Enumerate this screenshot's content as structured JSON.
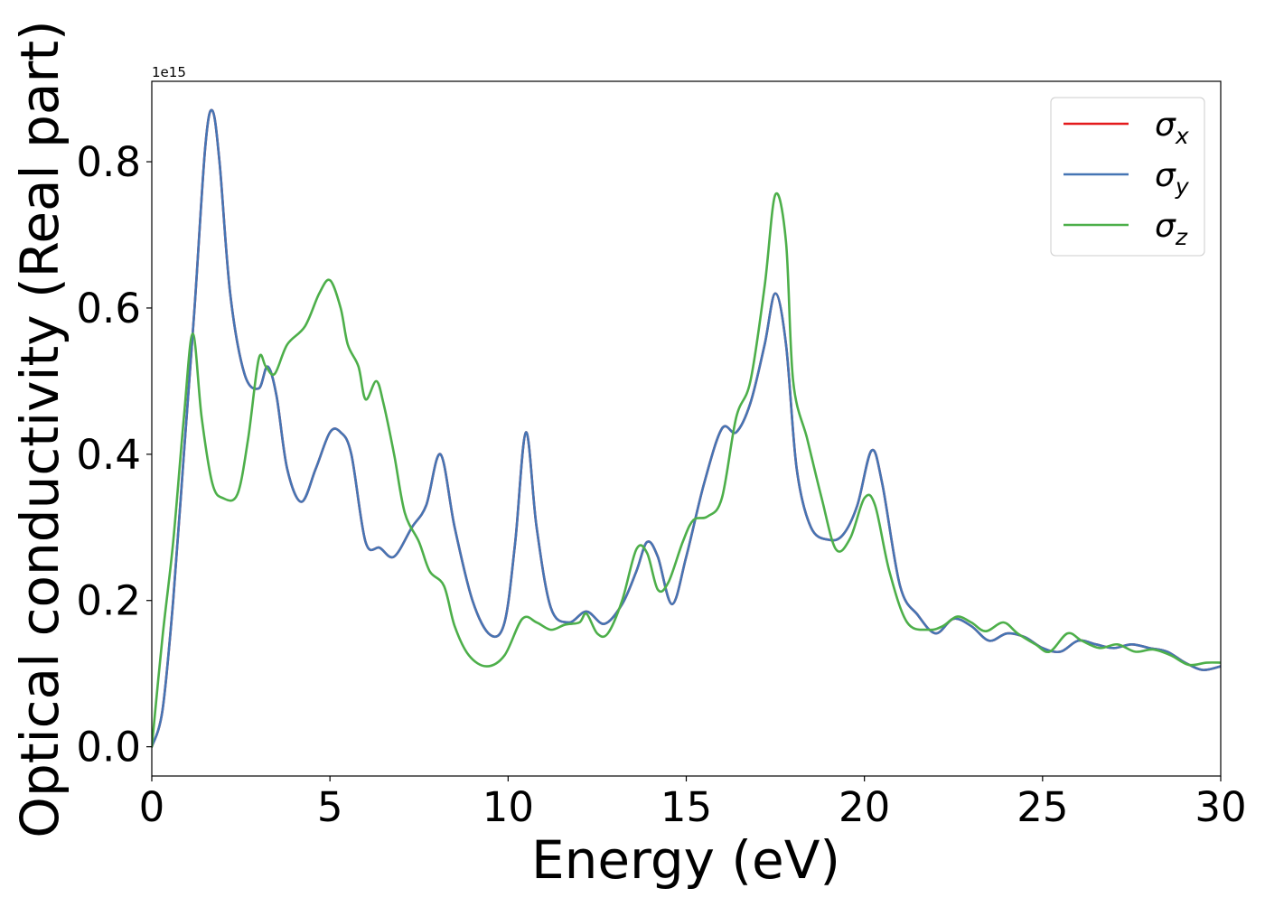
{
  "chart_data": {
    "type": "line",
    "title": "",
    "xlabel": "Energy (eV)",
    "ylabel": "Optical conductivity (Real part)",
    "offset_text": "1e15",
    "xlim": [
      0,
      30
    ],
    "ylim": [
      -0.04,
      0.91
    ],
    "y_multiplier": 1000000000000000.0,
    "xticks": [
      0,
      5,
      10,
      15,
      20,
      25,
      30
    ],
    "xtick_labels": [
      "0",
      "5",
      "10",
      "15",
      "20",
      "25",
      "30"
    ],
    "yticks": [
      0.0,
      0.2,
      0.4,
      0.6,
      0.8
    ],
    "ytick_labels": [
      "0.0",
      "0.2",
      "0.4",
      "0.6",
      "0.8"
    ],
    "grid": false,
    "legend_position": "top-right",
    "series": [
      {
        "name": "σx",
        "name_base": "σ",
        "name_sub": "x",
        "color": "#e41a1c",
        "points": [
          [
            0,
            0
          ],
          [
            0.3,
            0.05
          ],
          [
            0.6,
            0.2
          ],
          [
            0.9,
            0.4
          ],
          [
            1.2,
            0.6
          ],
          [
            1.5,
            0.82
          ],
          [
            1.7,
            0.87
          ],
          [
            1.9,
            0.8
          ],
          [
            2.2,
            0.62
          ],
          [
            2.6,
            0.51
          ],
          [
            3.0,
            0.49
          ],
          [
            3.25,
            0.52
          ],
          [
            3.5,
            0.48
          ],
          [
            3.8,
            0.38
          ],
          [
            4.2,
            0.335
          ],
          [
            4.6,
            0.38
          ],
          [
            5.0,
            0.43
          ],
          [
            5.3,
            0.43
          ],
          [
            5.6,
            0.4
          ],
          [
            6.0,
            0.28
          ],
          [
            6.4,
            0.272
          ],
          [
            6.8,
            0.26
          ],
          [
            7.3,
            0.3
          ],
          [
            7.7,
            0.33
          ],
          [
            8.1,
            0.4
          ],
          [
            8.5,
            0.3
          ],
          [
            9.0,
            0.2
          ],
          [
            9.5,
            0.153
          ],
          [
            9.9,
            0.17
          ],
          [
            10.2,
            0.28
          ],
          [
            10.5,
            0.43
          ],
          [
            10.8,
            0.3
          ],
          [
            11.2,
            0.19
          ],
          [
            11.7,
            0.17
          ],
          [
            12.2,
            0.185
          ],
          [
            12.7,
            0.168
          ],
          [
            13.2,
            0.195
          ],
          [
            13.6,
            0.24
          ],
          [
            13.9,
            0.28
          ],
          [
            14.2,
            0.26
          ],
          [
            14.6,
            0.195
          ],
          [
            15.0,
            0.26
          ],
          [
            15.5,
            0.36
          ],
          [
            16.0,
            0.435
          ],
          [
            16.4,
            0.43
          ],
          [
            16.8,
            0.47
          ],
          [
            17.2,
            0.55
          ],
          [
            17.5,
            0.62
          ],
          [
            17.8,
            0.55
          ],
          [
            18.1,
            0.38
          ],
          [
            18.5,
            0.3
          ],
          [
            19.0,
            0.283
          ],
          [
            19.4,
            0.29
          ],
          [
            19.8,
            0.33
          ],
          [
            20.2,
            0.405
          ],
          [
            20.5,
            0.36
          ],
          [
            21.0,
            0.22
          ],
          [
            21.5,
            0.18
          ],
          [
            22.0,
            0.155
          ],
          [
            22.5,
            0.175
          ],
          [
            23.0,
            0.165
          ],
          [
            23.5,
            0.145
          ],
          [
            24.0,
            0.155
          ],
          [
            24.5,
            0.15
          ],
          [
            25.0,
            0.135
          ],
          [
            25.5,
            0.13
          ],
          [
            26.0,
            0.145
          ],
          [
            26.5,
            0.14
          ],
          [
            27.0,
            0.135
          ],
          [
            27.5,
            0.14
          ],
          [
            28.0,
            0.135
          ],
          [
            28.5,
            0.13
          ],
          [
            29.0,
            0.115
          ],
          [
            29.5,
            0.105
          ],
          [
            30.0,
            0.11
          ]
        ]
      },
      {
        "name": "σy",
        "name_base": "σ",
        "name_sub": "y",
        "color": "#4575b4",
        "points": [
          [
            0,
            0
          ],
          [
            0.3,
            0.05
          ],
          [
            0.6,
            0.2
          ],
          [
            0.9,
            0.4
          ],
          [
            1.2,
            0.6
          ],
          [
            1.5,
            0.82
          ],
          [
            1.7,
            0.87
          ],
          [
            1.9,
            0.8
          ],
          [
            2.2,
            0.62
          ],
          [
            2.6,
            0.51
          ],
          [
            3.0,
            0.49
          ],
          [
            3.25,
            0.52
          ],
          [
            3.5,
            0.48
          ],
          [
            3.8,
            0.38
          ],
          [
            4.2,
            0.335
          ],
          [
            4.6,
            0.38
          ],
          [
            5.0,
            0.43
          ],
          [
            5.3,
            0.43
          ],
          [
            5.6,
            0.4
          ],
          [
            6.0,
            0.28
          ],
          [
            6.4,
            0.272
          ],
          [
            6.8,
            0.26
          ],
          [
            7.3,
            0.3
          ],
          [
            7.7,
            0.33
          ],
          [
            8.1,
            0.4
          ],
          [
            8.5,
            0.3
          ],
          [
            9.0,
            0.2
          ],
          [
            9.5,
            0.153
          ],
          [
            9.9,
            0.17
          ],
          [
            10.2,
            0.28
          ],
          [
            10.5,
            0.43
          ],
          [
            10.8,
            0.3
          ],
          [
            11.2,
            0.19
          ],
          [
            11.7,
            0.17
          ],
          [
            12.2,
            0.185
          ],
          [
            12.7,
            0.168
          ],
          [
            13.2,
            0.195
          ],
          [
            13.6,
            0.24
          ],
          [
            13.9,
            0.28
          ],
          [
            14.2,
            0.26
          ],
          [
            14.6,
            0.195
          ],
          [
            15.0,
            0.26
          ],
          [
            15.5,
            0.36
          ],
          [
            16.0,
            0.435
          ],
          [
            16.4,
            0.43
          ],
          [
            16.8,
            0.47
          ],
          [
            17.2,
            0.55
          ],
          [
            17.5,
            0.62
          ],
          [
            17.8,
            0.55
          ],
          [
            18.1,
            0.38
          ],
          [
            18.5,
            0.3
          ],
          [
            19.0,
            0.283
          ],
          [
            19.4,
            0.29
          ],
          [
            19.8,
            0.33
          ],
          [
            20.2,
            0.405
          ],
          [
            20.5,
            0.36
          ],
          [
            21.0,
            0.22
          ],
          [
            21.5,
            0.18
          ],
          [
            22.0,
            0.155
          ],
          [
            22.5,
            0.175
          ],
          [
            23.0,
            0.165
          ],
          [
            23.5,
            0.145
          ],
          [
            24.0,
            0.155
          ],
          [
            24.5,
            0.15
          ],
          [
            25.0,
            0.135
          ],
          [
            25.5,
            0.13
          ],
          [
            26.0,
            0.145
          ],
          [
            26.5,
            0.14
          ],
          [
            27.0,
            0.135
          ],
          [
            27.5,
            0.14
          ],
          [
            28.0,
            0.135
          ],
          [
            28.5,
            0.13
          ],
          [
            29.0,
            0.115
          ],
          [
            29.5,
            0.105
          ],
          [
            30.0,
            0.11
          ]
        ]
      },
      {
        "name": "σz",
        "name_base": "σ",
        "name_sub": "z",
        "color": "#4daf4a",
        "points": [
          [
            0,
            0
          ],
          [
            0.3,
            0.15
          ],
          [
            0.6,
            0.28
          ],
          [
            0.9,
            0.45
          ],
          [
            1.15,
            0.565
          ],
          [
            1.4,
            0.45
          ],
          [
            1.7,
            0.36
          ],
          [
            2.0,
            0.34
          ],
          [
            2.4,
            0.345
          ],
          [
            2.7,
            0.42
          ],
          [
            3.0,
            0.53
          ],
          [
            3.2,
            0.52
          ],
          [
            3.45,
            0.51
          ],
          [
            3.8,
            0.55
          ],
          [
            4.3,
            0.575
          ],
          [
            4.7,
            0.62
          ],
          [
            5.0,
            0.638
          ],
          [
            5.3,
            0.6
          ],
          [
            5.5,
            0.55
          ],
          [
            5.8,
            0.52
          ],
          [
            6.0,
            0.475
          ],
          [
            6.3,
            0.5
          ],
          [
            6.5,
            0.47
          ],
          [
            6.8,
            0.4
          ],
          [
            7.1,
            0.32
          ],
          [
            7.5,
            0.28
          ],
          [
            7.8,
            0.24
          ],
          [
            8.2,
            0.22
          ],
          [
            8.5,
            0.165
          ],
          [
            8.9,
            0.125
          ],
          [
            9.4,
            0.11
          ],
          [
            9.9,
            0.125
          ],
          [
            10.4,
            0.175
          ],
          [
            10.8,
            0.17
          ],
          [
            11.2,
            0.16
          ],
          [
            11.6,
            0.167
          ],
          [
            12.0,
            0.17
          ],
          [
            12.2,
            0.182
          ],
          [
            12.5,
            0.155
          ],
          [
            12.8,
            0.155
          ],
          [
            13.2,
            0.2
          ],
          [
            13.6,
            0.27
          ],
          [
            13.9,
            0.265
          ],
          [
            14.2,
            0.215
          ],
          [
            14.5,
            0.225
          ],
          [
            14.9,
            0.28
          ],
          [
            15.2,
            0.31
          ],
          [
            15.6,
            0.315
          ],
          [
            16.0,
            0.34
          ],
          [
            16.4,
            0.45
          ],
          [
            16.8,
            0.5
          ],
          [
            17.2,
            0.63
          ],
          [
            17.5,
            0.755
          ],
          [
            17.8,
            0.69
          ],
          [
            18.0,
            0.5
          ],
          [
            18.4,
            0.42
          ],
          [
            18.8,
            0.34
          ],
          [
            19.2,
            0.27
          ],
          [
            19.6,
            0.285
          ],
          [
            20.0,
            0.34
          ],
          [
            20.3,
            0.33
          ],
          [
            20.7,
            0.24
          ],
          [
            21.2,
            0.17
          ],
          [
            21.8,
            0.16
          ],
          [
            22.2,
            0.165
          ],
          [
            22.6,
            0.178
          ],
          [
            23.0,
            0.17
          ],
          [
            23.4,
            0.158
          ],
          [
            23.9,
            0.17
          ],
          [
            24.3,
            0.155
          ],
          [
            24.8,
            0.14
          ],
          [
            25.2,
            0.13
          ],
          [
            25.7,
            0.155
          ],
          [
            26.1,
            0.145
          ],
          [
            26.6,
            0.135
          ],
          [
            27.1,
            0.14
          ],
          [
            27.6,
            0.13
          ],
          [
            28.1,
            0.133
          ],
          [
            28.6,
            0.125
          ],
          [
            29.1,
            0.112
          ],
          [
            29.6,
            0.115
          ],
          [
            30.0,
            0.115
          ]
        ]
      }
    ]
  }
}
